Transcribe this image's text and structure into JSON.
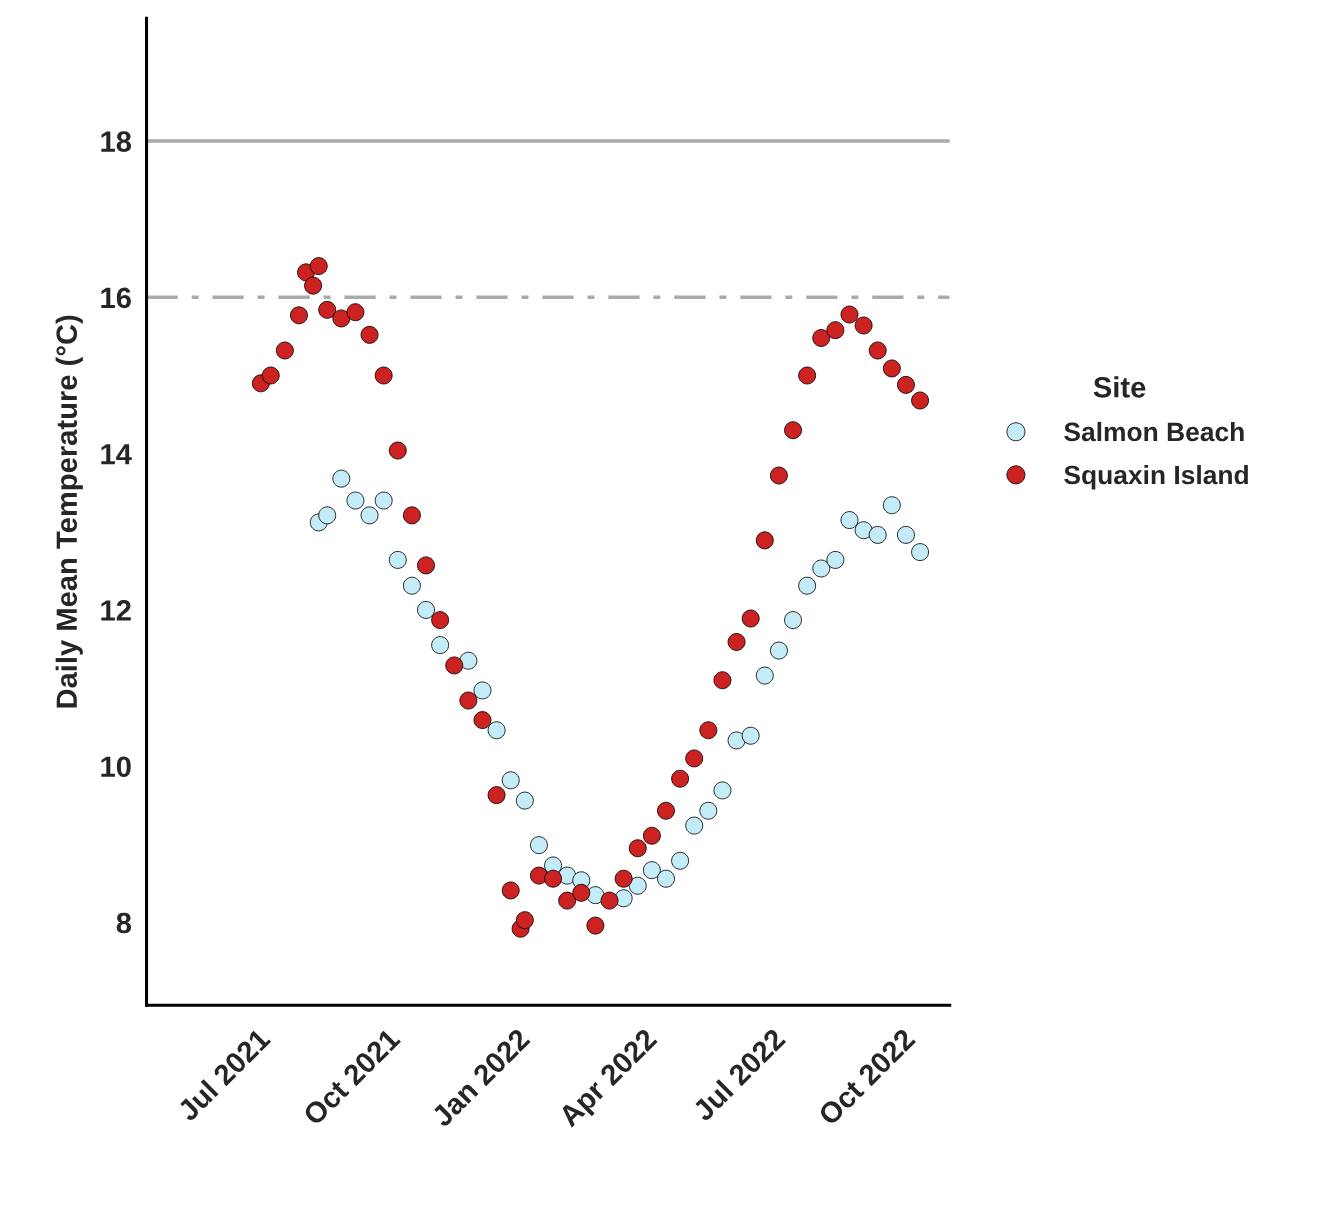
{
  "chart_data": {
    "type": "scatter",
    "ylabel": "Daily Mean Temperature (°C)",
    "legend_title": "Site",
    "legend": "right",
    "marker": "circle",
    "grid": false,
    "xlim": [
      "2021-04-14",
      "2022-11-04"
    ],
    "ylim": [
      6.94,
      19.57
    ],
    "xticks": [
      {
        "value": "2021-07-01",
        "label": "Jul 2021"
      },
      {
        "value": "2021-10-01",
        "label": "Oct 2021"
      },
      {
        "value": "2022-01-01",
        "label": "Jan 2022"
      },
      {
        "value": "2022-04-01",
        "label": "Apr 2022"
      },
      {
        "value": "2022-07-01",
        "label": "Jul 2022"
      },
      {
        "value": "2022-10-01",
        "label": "Oct 2022"
      }
    ],
    "yticks": [
      8,
      10,
      12,
      14,
      16,
      18
    ],
    "ref_lines": [
      {
        "axis": "y",
        "value": 18,
        "color": "#aaaaaa",
        "line_style": "solid"
      },
      {
        "axis": "y",
        "value": 16,
        "color": "#aaaaaa",
        "line_style": "dashdot"
      }
    ],
    "series": [
      {
        "name": "Salmon Beach",
        "color": "#c4ecf8",
        "x": [
          "2021-08-14",
          "2021-08-20",
          "2021-08-30",
          "2021-09-09",
          "2021-09-19",
          "2021-09-29",
          "2021-10-09",
          "2021-10-19",
          "2021-10-29",
          "2021-11-08",
          "2021-11-18",
          "2021-11-28",
          "2021-12-08",
          "2021-12-18",
          "2021-12-28",
          "2022-01-07",
          "2022-01-17",
          "2022-01-27",
          "2022-02-06",
          "2022-02-16",
          "2022-02-26",
          "2022-03-08",
          "2022-03-18",
          "2022-03-28",
          "2022-04-07",
          "2022-04-17",
          "2022-04-27",
          "2022-05-07",
          "2022-05-17",
          "2022-05-27",
          "2022-06-06",
          "2022-06-16",
          "2022-06-26",
          "2022-07-06",
          "2022-07-16",
          "2022-07-26",
          "2022-08-05",
          "2022-08-15",
          "2022-08-25",
          "2022-09-04",
          "2022-09-14",
          "2022-09-24",
          "2022-10-04",
          "2022-10-14"
        ],
        "values": [
          13.12,
          13.21,
          13.68,
          13.4,
          13.21,
          13.4,
          12.64,
          12.31,
          12.0,
          11.55,
          null,
          11.35,
          10.97,
          10.46,
          9.82,
          9.56,
          8.99,
          8.73,
          8.6,
          8.54,
          8.35,
          null,
          8.31,
          8.47,
          8.67,
          8.56,
          8.79,
          9.24,
          9.43,
          9.69,
          10.33,
          10.39,
          11.16,
          11.48,
          11.87,
          12.31,
          12.53,
          12.64,
          13.15,
          13.02,
          12.96,
          13.34,
          12.96,
          12.74
        ]
      },
      {
        "name": "Squaxin Island",
        "color": "#cc2222",
        "x": [
          "2021-07-04",
          "2021-07-11",
          "2021-07-21",
          "2021-07-31",
          "2021-08-05",
          "2021-08-10",
          "2021-08-14",
          "2021-08-20",
          "2021-08-30",
          "2021-09-09",
          "2021-09-19",
          "2021-09-29",
          "2021-10-09",
          "2021-10-19",
          "2021-10-29",
          "2021-11-08",
          "2021-11-18",
          "2021-11-28",
          "2021-12-08",
          "2021-12-18",
          "2021-12-28",
          "2022-01-04",
          "2022-01-07",
          "2022-01-17",
          "2022-01-27",
          "2022-02-06",
          "2022-02-16",
          "2022-02-26",
          "2022-03-08",
          "2022-03-18",
          "2022-03-28",
          "2022-04-07",
          "2022-04-17",
          "2022-04-27",
          "2022-05-07",
          "2022-05-17",
          "2022-05-27",
          "2022-06-06",
          "2022-06-16",
          "2022-06-26",
          "2022-07-06",
          "2022-07-16",
          "2022-07-26",
          "2022-08-05",
          "2022-08-15",
          "2022-08-25",
          "2022-09-04",
          "2022-09-14",
          "2022-09-24",
          "2022-10-04",
          "2022-10-14"
        ],
        "values": [
          14.9,
          15.0,
          15.32,
          15.77,
          16.32,
          16.15,
          16.4,
          15.84,
          15.73,
          15.81,
          15.52,
          15.0,
          14.04,
          13.21,
          12.57,
          11.87,
          11.29,
          10.84,
          10.59,
          9.63,
          8.41,
          7.92,
          8.03,
          8.6,
          8.56,
          8.28,
          8.38,
          7.96,
          8.28,
          8.56,
          8.95,
          9.11,
          9.43,
          9.84,
          10.1,
          10.46,
          11.1,
          11.59,
          11.89,
          12.89,
          13.72,
          14.3,
          15.0,
          15.48,
          15.58,
          15.78,
          15.64,
          15.32,
          15.09,
          14.88,
          14.68
        ]
      }
    ]
  }
}
